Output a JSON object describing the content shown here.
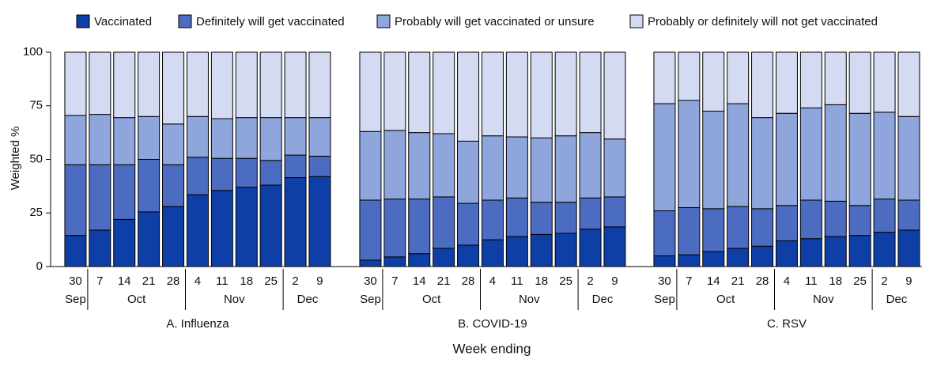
{
  "chart_data": {
    "type": "stacked_bar",
    "ylabel": "Weighted %",
    "xlabel": "Week ending",
    "ylim": [
      0,
      100
    ],
    "yticks": [
      0,
      25,
      50,
      75,
      100
    ],
    "legend": "top",
    "series": [
      {
        "name": "Vaccinated",
        "color": "#0d3fa6"
      },
      {
        "name": "Definitely will get vaccinated",
        "color": "#4b6cc1"
      },
      {
        "name": "Probably will get vaccinated or unsure",
        "color": "#8ea6dc"
      },
      {
        "name": "Probably or definitely will not get vaccinated",
        "color": "#d3daf1"
      }
    ],
    "panels": [
      {
        "title": "A. Influenza",
        "categories": [
          "30",
          "7",
          "14",
          "21",
          "28",
          "4",
          "11",
          "18",
          "25",
          "2",
          "9"
        ],
        "months": [
          "Sep",
          "Oct",
          null,
          null,
          null,
          "Nov",
          null,
          null,
          null,
          "Dec",
          null
        ],
        "series": [
          {
            "values": [
              14.5,
              17,
              22,
              25.5,
              28,
              33.5,
              35.5,
              37,
              38,
              41.5,
              42
            ]
          },
          {
            "values": [
              33,
              30.5,
              25.5,
              24.5,
              19.5,
              17.5,
              15,
              13.5,
              11.5,
              10.5,
              9.5
            ]
          },
          {
            "values": [
              23,
              23.5,
              22,
              20,
              19,
              19,
              18.5,
              19,
              20,
              17.5,
              18
            ]
          },
          {
            "values": [
              29.5,
              29,
              30.5,
              30,
              33.5,
              30,
              31,
              30.5,
              30.5,
              30.5,
              30.5
            ]
          }
        ]
      },
      {
        "title": "B. COVID-19",
        "categories": [
          "30",
          "7",
          "14",
          "21",
          "28",
          "4",
          "11",
          "18",
          "25",
          "2",
          "9"
        ],
        "months": [
          "Sep",
          "Oct",
          null,
          null,
          null,
          "Nov",
          null,
          null,
          null,
          "Dec",
          null
        ],
        "series": [
          {
            "values": [
              3,
              4.5,
              6,
              8.5,
              10,
              12.5,
              14,
              15,
              15.5,
              17.5,
              18.5
            ]
          },
          {
            "values": [
              28,
              27,
              25.5,
              24,
              19.5,
              18.5,
              18,
              15,
              14.5,
              14.5,
              14
            ]
          },
          {
            "values": [
              32,
              32,
              31,
              29.5,
              29,
              30,
              28.5,
              30,
              31,
              30.5,
              27
            ]
          },
          {
            "values": [
              37,
              36.5,
              37.5,
              38,
              41.5,
              39,
              39.5,
              40,
              39,
              37.5,
              40.5
            ]
          }
        ]
      },
      {
        "title": "C. RSV",
        "categories": [
          "30",
          "7",
          "14",
          "21",
          "28",
          "4",
          "11",
          "18",
          "25",
          "2",
          "9"
        ],
        "months": [
          "Sep",
          "Oct",
          null,
          null,
          null,
          "Nov",
          null,
          null,
          null,
          "Dec",
          null
        ],
        "series": [
          {
            "values": [
              5,
              5.5,
              7,
              8.5,
              9.5,
              12,
              13,
              14,
              14.5,
              16,
              17
            ]
          },
          {
            "values": [
              21,
              22,
              20,
              19.5,
              17.5,
              16.5,
              18,
              16.5,
              14,
              15.5,
              14
            ]
          },
          {
            "values": [
              50,
              50,
              45.5,
              48,
              42.5,
              43,
              43,
              45,
              43,
              40.5,
              39
            ]
          },
          {
            "values": [
              24,
              22.5,
              27.5,
              24,
              30.5,
              28.5,
              26,
              24.5,
              28.5,
              28,
              30
            ]
          }
        ]
      }
    ]
  }
}
